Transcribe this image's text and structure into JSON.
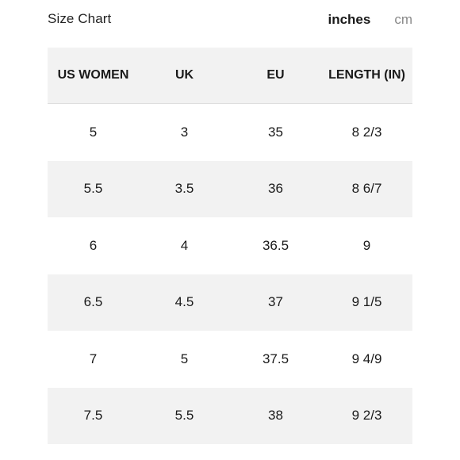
{
  "header": {
    "title": "Size Chart",
    "units": [
      "inches",
      "cm"
    ],
    "active_unit": "inches"
  },
  "table": {
    "columns": [
      "US WOMEN",
      "UK",
      "EU",
      "LENGTH (IN)"
    ],
    "rows": [
      [
        "5",
        "3",
        "35",
        "8 2/3"
      ],
      [
        "5.5",
        "3.5",
        "36",
        "8 6/7"
      ],
      [
        "6",
        "4",
        "36.5",
        "9"
      ],
      [
        "6.5",
        "4.5",
        "37",
        "9 1/5"
      ],
      [
        "7",
        "5",
        "37.5",
        "9 4/9"
      ],
      [
        "7.5",
        "5.5",
        "38",
        "9 2/3"
      ]
    ]
  },
  "colors": {
    "row_shade": "#f2f2f2",
    "text": "#1a1a1a",
    "inactive_unit": "#888888"
  }
}
